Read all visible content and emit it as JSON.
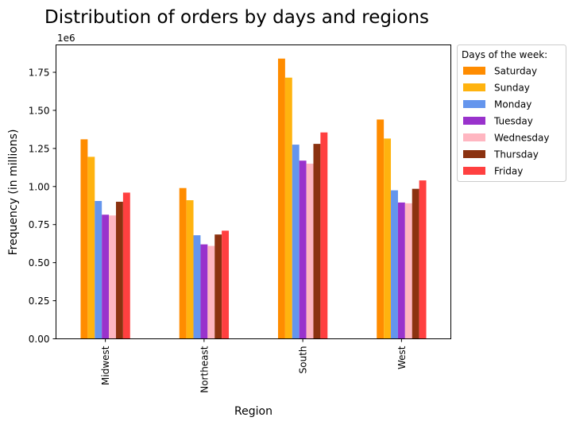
{
  "chart_data": {
    "type": "bar",
    "title": "Distribution of orders by days and regions",
    "xlabel": "Region",
    "ylabel": "Frequency (in millions)",
    "y_offset_label": "1e6",
    "categories": [
      "Midwest",
      "Northeast",
      "South",
      "West"
    ],
    "ylim": [
      0,
      1.93
    ],
    "yticks": [
      0.0,
      0.25,
      0.5,
      0.75,
      1.0,
      1.25,
      1.5,
      1.75
    ],
    "ytick_labels": [
      "0.00",
      "0.25",
      "0.50",
      "0.75",
      "1.00",
      "1.25",
      "1.50",
      "1.75"
    ],
    "grid": false,
    "legend": {
      "title": "Days of the week:",
      "placement": "outside-top-right"
    },
    "series": [
      {
        "name": "Saturday",
        "color": "#ff8c00",
        "values": [
          1.31,
          0.99,
          1.84,
          1.44
        ]
      },
      {
        "name": "Sunday",
        "color": "#ffb30f",
        "values": [
          1.195,
          0.91,
          1.715,
          1.315
        ]
      },
      {
        "name": "Monday",
        "color": "#6495ed",
        "values": [
          0.905,
          0.68,
          1.275,
          0.975
        ]
      },
      {
        "name": "Tuesday",
        "color": "#9932cc",
        "values": [
          0.815,
          0.62,
          1.17,
          0.895
        ]
      },
      {
        "name": "Wednesday",
        "color": "#ffb6c1",
        "values": [
          0.81,
          0.61,
          1.15,
          0.89
        ]
      },
      {
        "name": "Thursday",
        "color": "#8b3210",
        "values": [
          0.9,
          0.685,
          1.28,
          0.985
        ]
      },
      {
        "name": "Friday",
        "color": "#ff4040",
        "values": [
          0.96,
          0.71,
          1.355,
          1.04
        ]
      }
    ]
  }
}
